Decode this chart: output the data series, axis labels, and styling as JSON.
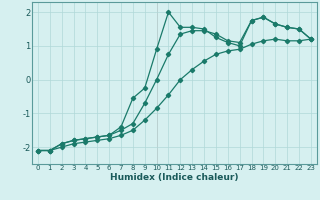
{
  "xlabel": "Humidex (Indice chaleur)",
  "background_color": "#d6f0f0",
  "grid_color": "#b0d8d8",
  "line_color": "#1a7a6a",
  "xlim": [
    -0.5,
    23.5
  ],
  "ylim": [
    -2.5,
    2.3
  ],
  "yticks": [
    -2,
    -1,
    0,
    1,
    2
  ],
  "xticks": [
    0,
    1,
    2,
    3,
    4,
    5,
    6,
    7,
    8,
    9,
    10,
    11,
    12,
    13,
    14,
    15,
    16,
    17,
    18,
    19,
    20,
    21,
    22,
    23
  ],
  "series1_x": [
    0,
    1,
    2,
    3,
    4,
    5,
    6,
    7,
    8,
    9,
    10,
    11,
    12,
    13,
    14,
    15,
    16,
    17,
    18,
    19,
    20,
    21,
    22,
    23
  ],
  "series1_y": [
    -2.1,
    -2.1,
    -1.9,
    -1.8,
    -1.75,
    -1.7,
    -1.65,
    -1.4,
    -0.55,
    -0.25,
    0.9,
    2.0,
    1.55,
    1.55,
    1.5,
    1.25,
    1.1,
    1.0,
    1.75,
    1.85,
    1.65,
    1.55,
    1.5,
    1.2
  ],
  "series2_x": [
    0,
    1,
    2,
    3,
    4,
    5,
    6,
    7,
    8,
    9,
    10,
    11,
    12,
    13,
    14,
    15,
    16,
    17,
    18,
    19,
    20,
    21,
    22,
    23
  ],
  "series2_y": [
    -2.1,
    -2.1,
    -1.9,
    -1.8,
    -1.75,
    -1.7,
    -1.65,
    -1.5,
    -1.3,
    -0.7,
    0.0,
    0.75,
    1.35,
    1.45,
    1.45,
    1.35,
    1.15,
    1.1,
    1.75,
    1.85,
    1.65,
    1.55,
    1.5,
    1.2
  ],
  "series3_x": [
    0,
    1,
    2,
    3,
    4,
    5,
    6,
    7,
    8,
    9,
    10,
    11,
    12,
    13,
    14,
    15,
    16,
    17,
    18,
    19,
    20,
    21,
    22,
    23
  ],
  "series3_y": [
    -2.1,
    -2.1,
    -2.0,
    -1.9,
    -1.85,
    -1.8,
    -1.75,
    -1.65,
    -1.5,
    -1.2,
    -0.85,
    -0.45,
    0.0,
    0.3,
    0.55,
    0.75,
    0.85,
    0.9,
    1.05,
    1.15,
    1.2,
    1.15,
    1.15,
    1.2
  ]
}
